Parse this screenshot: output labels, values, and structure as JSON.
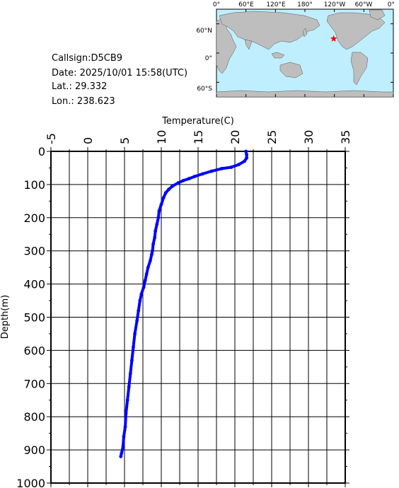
{
  "meta": {
    "callsign": "Callsign:D5CB9",
    "date": "Date:  2025/10/01 15:58(UTC)",
    "lat": "Lat.:   29.332",
    "lon": "Lon.:  238.623"
  },
  "map": {
    "x_ticks": [
      "0°",
      "60°E",
      "120°E",
      "180°",
      "120°W",
      "60°W",
      "0°"
    ],
    "y_ticks": [
      "60°N",
      "0°",
      "60°S"
    ],
    "marker_lon": 238.623,
    "marker_lat": 29.332,
    "ocean_color": "#bfefff",
    "land_color": "#bebebe",
    "marker_color": "#ff0000"
  },
  "chart_data": {
    "type": "line",
    "xlabel": "Temperature(C)",
    "ylabel": "Depth(m)",
    "xlim": [
      -5,
      35
    ],
    "ylim": [
      1000,
      0
    ],
    "x_ticks": [
      "-5",
      "0",
      "5",
      "10",
      "15",
      "20",
      "25",
      "30",
      "35"
    ],
    "y_ticks": [
      "0",
      "100",
      "200",
      "300",
      "400",
      "500",
      "600",
      "700",
      "800",
      "900",
      "1000"
    ],
    "x_axis_position": "top",
    "grid": true,
    "line_color": "#0000ff",
    "series": [
      {
        "x": [
          21.5,
          21.6,
          21.6,
          21.3,
          20.5,
          19.5,
          18.2,
          16.8,
          15.6,
          14.5,
          13.8,
          13.0,
          12.3,
          11.5,
          11.0,
          10.6,
          10.3,
          10.0,
          9.7,
          9.6,
          9.4,
          9.2,
          9.1,
          8.9,
          8.8,
          8.7,
          8.5,
          8.2,
          8.0,
          7.8,
          7.6,
          7.3,
          7.1,
          6.9,
          6.7,
          6.4,
          6.2,
          6.0,
          5.8,
          5.6,
          5.4,
          5.2,
          5.1,
          4.9,
          4.8,
          4.6,
          4.5
        ],
        "y": [
          0,
          10,
          20,
          30,
          40,
          48,
          52,
          60,
          68,
          76,
          82,
          88,
          95,
          105,
          115,
          125,
          140,
          160,
          180,
          200,
          220,
          240,
          260,
          280,
          300,
          310,
          330,
          350,
          370,
          390,
          410,
          430,
          450,
          480,
          510,
          550,
          590,
          630,
          670,
          710,
          750,
          790,
          830,
          860,
          890,
          910,
          920
        ]
      }
    ]
  }
}
